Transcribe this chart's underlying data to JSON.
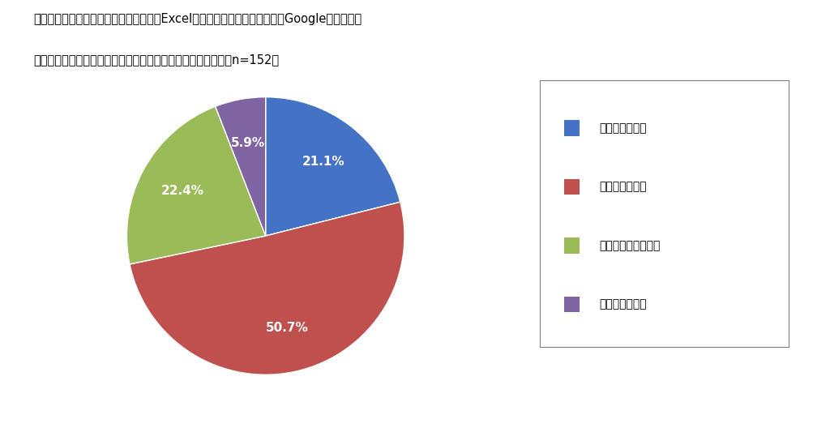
{
  "title_line1": "あなたの営業まわりの管理で請求業務をExcel、もしくは類似するツール（Googleスプレッド",
  "title_line2": "シートなど）で管理することに、大変さを感じていますか？（n=152）",
  "slices": [
    21.1,
    50.7,
    22.4,
    5.9
  ],
  "labels": [
    "21.1%",
    "50.7%",
    "22.4%",
    "5.9%"
  ],
  "colors": [
    "#4472C4",
    "#C0504D",
    "#9BBB59",
    "#8064A2"
  ],
  "legend_labels": [
    "強く感じている",
    "やや感じている",
    "あまり感じていない",
    "全然感じてない"
  ],
  "background_color": "#FFFFFF",
  "title_fontsize": 10.5,
  "label_fontsize": 11,
  "legend_fontsize": 10
}
